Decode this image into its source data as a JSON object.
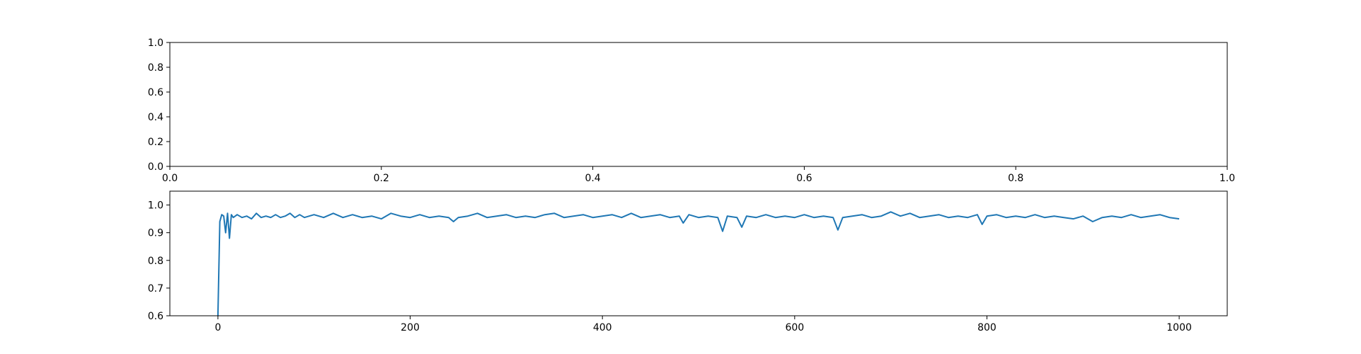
{
  "colors": {
    "line": "#1f77b4",
    "axes": "#000000",
    "background": "#ffffff"
  },
  "chart_data": [
    {
      "type": "line",
      "title": "",
      "xlabel": "",
      "ylabel": "",
      "xlim": [
        0.0,
        1.0
      ],
      "ylim": [
        0.0,
        1.0
      ],
      "grid": false,
      "xticks": [
        "0.0",
        "0.2",
        "0.4",
        "0.6",
        "0.8",
        "1.0"
      ],
      "yticks": [
        "0.0",
        "0.2",
        "0.4",
        "0.6",
        "0.8",
        "1.0"
      ],
      "series": []
    },
    {
      "type": "line",
      "title": "",
      "xlabel": "",
      "ylabel": "",
      "xlim": [
        -50,
        1050
      ],
      "ylim": [
        0.6,
        1.05
      ],
      "grid": false,
      "xticks": [
        "0",
        "200",
        "400",
        "600",
        "800",
        "1000"
      ],
      "yticks": [
        "0.6",
        "0.7",
        "0.8",
        "0.9",
        "1.0"
      ],
      "series": [
        {
          "x": [
            0,
            2,
            4,
            6,
            8,
            10,
            12,
            14,
            16,
            18,
            20,
            25,
            30,
            35,
            40,
            45,
            50,
            55,
            60,
            65,
            70,
            75,
            80,
            85,
            90,
            95,
            100,
            110,
            120,
            130,
            140,
            150,
            160,
            170,
            180,
            190,
            200,
            210,
            220,
            230,
            240,
            245,
            250,
            260,
            270,
            280,
            290,
            300,
            310,
            320,
            330,
            340,
            350,
            360,
            370,
            380,
            390,
            400,
            410,
            420,
            430,
            440,
            450,
            460,
            470,
            480,
            484,
            490,
            500,
            510,
            520,
            525,
            530,
            540,
            545,
            550,
            560,
            570,
            580,
            590,
            600,
            610,
            620,
            630,
            640,
            645,
            650,
            660,
            670,
            680,
            690,
            700,
            710,
            720,
            730,
            740,
            750,
            760,
            770,
            780,
            790,
            795,
            800,
            810,
            820,
            830,
            840,
            850,
            860,
            870,
            880,
            890,
            900,
            910,
            920,
            930,
            940,
            950,
            960,
            970,
            980,
            990,
            1000
          ],
          "y": [
            0.6,
            0.94,
            0.965,
            0.96,
            0.9,
            0.97,
            0.88,
            0.965,
            0.955,
            0.96,
            0.965,
            0.955,
            0.96,
            0.95,
            0.97,
            0.955,
            0.96,
            0.955,
            0.965,
            0.955,
            0.96,
            0.97,
            0.955,
            0.965,
            0.955,
            0.96,
            0.965,
            0.955,
            0.97,
            0.955,
            0.965,
            0.955,
            0.96,
            0.95,
            0.97,
            0.96,
            0.955,
            0.965,
            0.955,
            0.96,
            0.955,
            0.94,
            0.955,
            0.96,
            0.97,
            0.955,
            0.96,
            0.965,
            0.955,
            0.96,
            0.955,
            0.965,
            0.97,
            0.955,
            0.96,
            0.965,
            0.955,
            0.96,
            0.965,
            0.955,
            0.97,
            0.955,
            0.96,
            0.965,
            0.955,
            0.96,
            0.935,
            0.965,
            0.955,
            0.96,
            0.955,
            0.905,
            0.96,
            0.955,
            0.92,
            0.96,
            0.955,
            0.965,
            0.955,
            0.96,
            0.955,
            0.965,
            0.955,
            0.96,
            0.955,
            0.91,
            0.955,
            0.96,
            0.965,
            0.955,
            0.96,
            0.975,
            0.96,
            0.97,
            0.955,
            0.96,
            0.965,
            0.955,
            0.96,
            0.955,
            0.965,
            0.93,
            0.96,
            0.965,
            0.955,
            0.96,
            0.955,
            0.965,
            0.955,
            0.96,
            0.955,
            0.95,
            0.96,
            0.94,
            0.955,
            0.96,
            0.955,
            0.965,
            0.955,
            0.96,
            0.965,
            0.955,
            0.95
          ]
        }
      ]
    }
  ]
}
